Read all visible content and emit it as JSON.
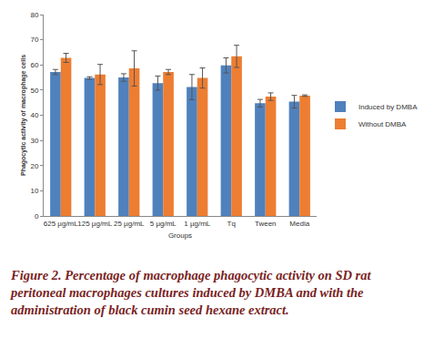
{
  "chart_data": {
    "type": "bar",
    "x_label": "Groups",
    "y_label": "Phagocytic activity of macrophage cells",
    "caption": "Figure 2. Percentage of macrophage phagocytic activity on SD rat peritoneal macrophages cultures induced by DMBA and with the administration of black cumin seed hexane extract.",
    "categories": [
      "625 µg/mL",
      "125 µg/mL",
      "25 µg/mL",
      "5 µg/mL",
      "1 µg/mL",
      "Tq",
      "Tween",
      "Media"
    ],
    "series": [
      {
        "name": "Induced by DMBA",
        "color": "#4F81BD",
        "values": [
          57.2,
          54.8,
          55.0,
          52.8,
          51.2,
          59.8,
          44.8,
          45.4
        ],
        "error": [
          1.0,
          0.5,
          1.5,
          2.8,
          5.0,
          3.0,
          1.5,
          2.5
        ]
      },
      {
        "name": "Without DMBA",
        "color": "#ED7D31",
        "values": [
          62.8,
          56.2,
          58.6,
          57.2,
          54.8,
          63.4,
          47.4,
          47.8
        ],
        "error": [
          1.8,
          4.0,
          7.0,
          1.0,
          4.0,
          4.4,
          1.5,
          0.3
        ]
      }
    ],
    "ylim": [
      0,
      80
    ],
    "yticks": [
      0,
      10,
      20,
      30,
      40,
      50,
      60,
      70,
      80
    ],
    "grid": false,
    "legend": "right"
  }
}
